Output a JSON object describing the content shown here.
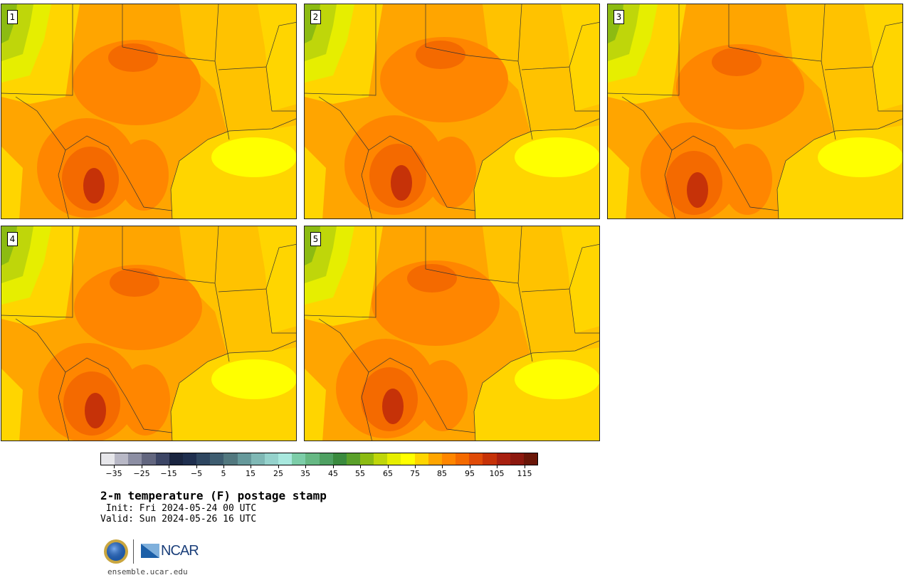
{
  "panels": [
    {
      "label": "1"
    },
    {
      "label": "2"
    },
    {
      "label": "3"
    },
    {
      "label": "4"
    },
    {
      "label": "5"
    }
  ],
  "colorbar": {
    "colors": [
      "#e6e6ea",
      "#b8b8c6",
      "#8c8ea3",
      "#62667f",
      "#3c4565",
      "#1a2540",
      "#1f2f4f",
      "#2e4660",
      "#3e5d70",
      "#52787f",
      "#66999b",
      "#7fb8b5",
      "#95d2cc",
      "#a8e8de",
      "#7ccda8",
      "#66b884",
      "#4ea062",
      "#3a8a3e",
      "#5aa02a",
      "#8cbb12",
      "#bfd60a",
      "#e6ee00",
      "#ffff00",
      "#ffd500",
      "#ffa500",
      "#ff8600",
      "#f46a00",
      "#e04b08",
      "#c63208",
      "#a82010",
      "#8c180e",
      "#6a1608"
    ],
    "tick_labels": [
      "−35",
      "−25",
      "−15",
      "−5",
      "5",
      "15",
      "25",
      "35",
      "45",
      "55",
      "65",
      "75",
      "85",
      "95",
      "105",
      "115"
    ]
  },
  "title": "2-m temperature (F) postage stamp",
  "init": " Init: Fri 2024-05-24 00 UTC",
  "valid": "Valid: Sun 2024-05-26 16 UTC",
  "logos": {
    "nsf": "NSF",
    "ncar": "NCAR"
  },
  "website": "ensemble.ucar.edu"
}
